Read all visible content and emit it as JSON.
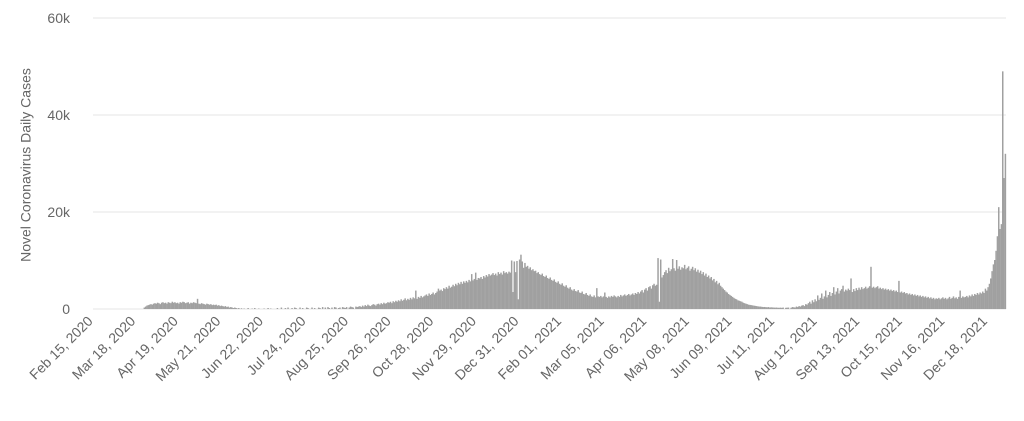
{
  "chart_data": {
    "type": "bar",
    "y_label": "Novel Coronavirus Daily Cases",
    "color": "#a0a0a0",
    "grid": true,
    "ylim": [
      0,
      60000
    ],
    "yticks": [
      0,
      {
        "value": 20000,
        "label": "20k"
      },
      {
        "value": 40000,
        "label": "40k"
      },
      {
        "value": 60000,
        "label": "60k"
      }
    ],
    "categories": [
      "Feb 15, 2020",
      null,
      null,
      null,
      null,
      null,
      null,
      null,
      null,
      null,
      null,
      null,
      null,
      null,
      null,
      null,
      null,
      null,
      null,
      null,
      null,
      null,
      null,
      null,
      null,
      null,
      null,
      null,
      null,
      null,
      null,
      null,
      "Mar 18, 2020",
      null,
      null,
      null,
      null,
      null,
      null,
      null,
      null,
      null,
      null,
      null,
      null,
      null,
      null,
      null,
      null,
      null,
      null,
      null,
      null,
      null,
      null,
      null,
      null,
      null,
      null,
      null,
      null,
      null,
      null,
      null,
      "Apr 19, 2020",
      null,
      null,
      null,
      null,
      null,
      null,
      null,
      null,
      null,
      null,
      null,
      null,
      null,
      null,
      null,
      null,
      null,
      null,
      null,
      null,
      null,
      null,
      null,
      null,
      null,
      null,
      null,
      null,
      null,
      null,
      null,
      "May 21, 2020",
      null,
      null,
      null,
      null,
      null,
      null,
      null,
      null,
      null,
      null,
      null,
      null,
      null,
      null,
      null,
      null,
      null,
      null,
      null,
      null,
      null,
      null,
      null,
      null,
      null,
      null,
      null,
      null,
      null,
      null,
      null,
      "Jun 22, 2020",
      null,
      null,
      null,
      null,
      null,
      null,
      null,
      null,
      null,
      null,
      null,
      null,
      null,
      null,
      null,
      null,
      null,
      null,
      null,
      null,
      null,
      null,
      null,
      null,
      null,
      null,
      null,
      null,
      null,
      null,
      null,
      "Jul 24, 2020",
      null,
      null,
      null,
      null,
      null,
      null,
      null,
      null,
      null,
      null,
      null,
      null,
      null,
      null,
      null,
      null,
      null,
      null,
      null,
      null,
      null,
      null,
      null,
      null,
      null,
      null,
      null,
      null,
      null,
      null,
      null,
      "Aug 25, 2020",
      null,
      null,
      null,
      null,
      null,
      null,
      null,
      null,
      null,
      null,
      null,
      null,
      null,
      null,
      null,
      null,
      null,
      null,
      null,
      null,
      null,
      null,
      null,
      null,
      null,
      null,
      null,
      null,
      null,
      null,
      null,
      "Sep 26, 2020",
      null,
      null,
      null,
      null,
      null,
      null,
      null,
      null,
      null,
      null,
      null,
      null,
      null,
      null,
      null,
      null,
      null,
      null,
      null,
      null,
      null,
      null,
      null,
      null,
      null,
      null,
      null,
      null,
      null,
      null,
      null,
      "Oct 28, 2020",
      null,
      null,
      null,
      null,
      null,
      null,
      null,
      null,
      null,
      null,
      null,
      null,
      null,
      null,
      null,
      null,
      null,
      null,
      null,
      null,
      null,
      null,
      null,
      null,
      null,
      null,
      null,
      null,
      null,
      null,
      null,
      "Nov 29, 2020",
      null,
      null,
      null,
      null,
      null,
      null,
      null,
      null,
      null,
      null,
      null,
      null,
      null,
      null,
      null,
      null,
      null,
      null,
      null,
      null,
      null,
      null,
      null,
      null,
      null,
      null,
      null,
      null,
      null,
      null,
      null,
      "Dec 31, 2020",
      null,
      null,
      null,
      null,
      null,
      null,
      null,
      null,
      null,
      null,
      null,
      null,
      null,
      null,
      null,
      null,
      null,
      null,
      null,
      null,
      null,
      null,
      null,
      null,
      null,
      null,
      null,
      null,
      null,
      null,
      null,
      "Feb 01, 2021",
      null,
      null,
      null,
      null,
      null,
      null,
      null,
      null,
      null,
      null,
      null,
      null,
      null,
      null,
      null,
      null,
      null,
      null,
      null,
      null,
      null,
      null,
      null,
      null,
      null,
      null,
      null,
      null,
      null,
      null,
      null,
      "Mar 05, 2021",
      null,
      null,
      null,
      null,
      null,
      null,
      null,
      null,
      null,
      null,
      null,
      null,
      null,
      null,
      null,
      null,
      null,
      null,
      null,
      null,
      null,
      null,
      null,
      null,
      null,
      null,
      null,
      null,
      null,
      null,
      null,
      "Apr 06, 2021",
      null,
      null,
      null,
      null,
      null,
      null,
      null,
      null,
      null,
      null,
      null,
      null,
      null,
      null,
      null,
      null,
      null,
      null,
      null,
      null,
      null,
      null,
      null,
      null,
      null,
      null,
      null,
      null,
      null,
      null,
      null,
      "May 08, 2021",
      null,
      null,
      null,
      null,
      null,
      null,
      null,
      null,
      null,
      null,
      null,
      null,
      null,
      null,
      null,
      null,
      null,
      null,
      null,
      null,
      null,
      null,
      null,
      null,
      null,
      null,
      null,
      null,
      null,
      null,
      null,
      "Jun 09, 2021",
      null,
      null,
      null,
      null,
      null,
      null,
      null,
      null,
      null,
      null,
      null,
      null,
      null,
      null,
      null,
      null,
      null,
      null,
      null,
      null,
      null,
      null,
      null,
      null,
      null,
      null,
      null,
      null,
      null,
      null,
      null,
      "Jul 11, 2021",
      null,
      null,
      null,
      null,
      null,
      null,
      null,
      null,
      null,
      null,
      null,
      null,
      null,
      null,
      null,
      null,
      null,
      null,
      null,
      null,
      null,
      null,
      null,
      null,
      null,
      null,
      null,
      null,
      null,
      null,
      null,
      "Aug 12, 2021",
      null,
      null,
      null,
      null,
      null,
      null,
      null,
      null,
      null,
      null,
      null,
      null,
      null,
      null,
      null,
      null,
      null,
      null,
      null,
      null,
      null,
      null,
      null,
      null,
      null,
      null,
      null,
      null,
      null,
      null,
      null,
      "Sep 13, 2021",
      null,
      null,
      null,
      null,
      null,
      null,
      null,
      null,
      null,
      null,
      null,
      null,
      null,
      null,
      null,
      null,
      null,
      null,
      null,
      null,
      null,
      null,
      null,
      null,
      null,
      null,
      null,
      null,
      null,
      null,
      null,
      "Oct 15, 2021",
      null,
      null,
      null,
      null,
      null,
      null,
      null,
      null,
      null,
      null,
      null,
      null,
      null,
      null,
      null,
      null,
      null,
      null,
      null,
      null,
      null,
      null,
      null,
      null,
      null,
      null,
      null,
      null,
      null,
      null,
      null,
      "Nov 16, 2021",
      null,
      null,
      null,
      null,
      null,
      null,
      null,
      null,
      null,
      null,
      null,
      null,
      null,
      null,
      null,
      null,
      null,
      null,
      null,
      null,
      null,
      null,
      null,
      null,
      null,
      null,
      null,
      null,
      null,
      null,
      null,
      "Dec 18, 2021",
      null,
      null,
      null,
      null,
      null,
      null,
      null,
      null,
      null,
      null,
      null,
      null,
      null
    ],
    "values": [
      0,
      0,
      0,
      0,
      0,
      0,
      0,
      0,
      0,
      0,
      0,
      0,
      0,
      0,
      0,
      0,
      0,
      0,
      0,
      0,
      0,
      0,
      0,
      0,
      0,
      0,
      0,
      0,
      0,
      0,
      0,
      0,
      0,
      0,
      0,
      0,
      0,
      0,
      300,
      500,
      700,
      800,
      900,
      1000,
      900,
      1100,
      1200,
      1100,
      1300,
      1200,
      1000,
      1300,
      1400,
      1200,
      1300,
      1100,
      1400,
      1300,
      1200,
      1500,
      1300,
      1400,
      1200,
      1300,
      1100,
      1400,
      1300,
      1500,
      1400,
      1200,
      1300,
      1400,
      1100,
      1300,
      1200,
      1400,
      1300,
      1200,
      2100,
      1100,
      1000,
      1200,
      1100,
      1000,
      900,
      1100,
      1000,
      900,
      1000,
      800,
      900,
      800,
      900,
      700,
      800,
      600,
      700,
      600,
      500,
      600,
      400,
      500,
      300,
      400,
      300,
      200,
      300,
      200,
      100,
      200,
      0,
      150,
      0,
      100,
      0,
      0,
      200,
      0,
      0,
      100,
      0,
      200,
      0,
      0,
      100,
      0,
      0,
      0,
      100,
      0,
      0,
      200,
      0,
      100,
      0,
      0,
      0,
      0,
      200,
      0,
      0,
      300,
      0,
      0,
      200,
      0,
      300,
      0,
      0,
      200,
      0,
      300,
      200,
      0,
      0,
      300,
      0,
      200,
      0,
      0,
      300,
      200,
      0,
      0,
      300,
      0,
      200,
      0,
      0,
      300,
      200,
      0,
      400,
      0,
      300,
      0,
      400,
      200,
      0,
      300,
      0,
      400,
      300,
      0,
      200,
      300,
      0,
      400,
      300,
      200,
      400,
      0,
      300,
      500,
      400,
      300,
      0,
      500,
      400,
      500,
      600,
      400,
      700,
      500,
      800,
      600,
      900,
      700,
      600,
      800,
      1000,
      900,
      700,
      1000,
      1100,
      900,
      1200,
      1000,
      1300,
      1100,
      1200,
      1400,
      1300,
      1500,
      1200,
      1600,
      1400,
      1700,
      1500,
      1800,
      1600,
      2000,
      1700,
      1900,
      2200,
      1800,
      2100,
      1900,
      2300,
      2000,
      2400,
      2200,
      3800,
      2100,
      2500,
      2300,
      2700,
      2400,
      2600,
      2800,
      3000,
      2700,
      3200,
      2900,
      3100,
      3400,
      3000,
      3300,
      3600,
      4200,
      3800,
      4000,
      3700,
      4300,
      4100,
      4500,
      4200,
      4800,
      4400,
      4600,
      5000,
      4700,
      5200,
      4900,
      5400,
      5100,
      5600,
      5200,
      5700,
      5400,
      5800,
      5500,
      6000,
      5700,
      7200,
      5900,
      6200,
      7500,
      6000,
      6400,
      6300,
      6600,
      6200,
      6800,
      6500,
      7000,
      6700,
      7200,
      6900,
      7100,
      7400,
      7000,
      7300,
      6900,
      7600,
      7200,
      7500,
      7100,
      7800,
      7400,
      7600,
      7300,
      7700,
      7500,
      10000,
      3500,
      9800,
      7600,
      9900,
      2000,
      10200,
      11200,
      9800,
      8500,
      9500,
      8700,
      8900,
      8300,
      8600,
      8000,
      8200,
      7800,
      7900,
      7400,
      7600,
      7200,
      7000,
      7300,
      6800,
      6600,
      6900,
      6400,
      6200,
      6500,
      6000,
      5800,
      6100,
      5600,
      5400,
      5700,
      5200,
      5000,
      5300,
      4800,
      4600,
      4900,
      4400,
      4200,
      4500,
      4000,
      3800,
      4100,
      3700,
      3600,
      3900,
      3400,
      3300,
      3600,
      3100,
      3000,
      3300,
      2900,
      2700,
      3000,
      2600,
      2500,
      2800,
      2400,
      4300,
      2600,
      2500,
      2700,
      2400,
      2600,
      3400,
      2500,
      2300,
      2600,
      2400,
      2700,
      2500,
      2800,
      2600,
      2400,
      2700,
      2500,
      2900,
      2600,
      2800,
      3000,
      2700,
      2900,
      3100,
      2800,
      3000,
      3200,
      2900,
      3300,
      3100,
      3500,
      3200,
      3600,
      3900,
      3400,
      4000,
      4300,
      3800,
      4500,
      4700,
      4200,
      4900,
      5200,
      4800,
      5000,
      10500,
      1500,
      10200,
      6500,
      7000,
      7600,
      8000,
      7400,
      8500,
      7800,
      8200,
      10300,
      8400,
      7900,
      10100,
      8300,
      8800,
      8100,
      8600,
      8400,
      9100,
      8200,
      8500,
      8800,
      7900,
      8300,
      8700,
      8000,
      8400,
      7700,
      8100,
      7500,
      7900,
      7200,
      7600,
      6900,
      7300,
      6600,
      6900,
      6300,
      6600,
      5900,
      6200,
      5500,
      5800,
      5100,
      5400,
      4800,
      4500,
      4200,
      3900,
      3600,
      3400,
      3100,
      2900,
      2700,
      2500,
      2300,
      2100,
      2000,
      1800,
      1700,
      1600,
      1500,
      1300,
      1200,
      1100,
      1000,
      900,
      850,
      800,
      750,
      700,
      650,
      600,
      550,
      500,
      500,
      450,
      400,
      420,
      380,
      350,
      400,
      300,
      350,
      320,
      300,
      280,
      300,
      260,
      250,
      280,
      240,
      300,
      0,
      250,
      280,
      300,
      0,
      260,
      400,
      350,
      300,
      500,
      400,
      600,
      500,
      700,
      800,
      600,
      1000,
      900,
      1200,
      1500,
      1100,
      1800,
      1400,
      2000,
      1600,
      2800,
      1900,
      2300,
      3200,
      2100,
      2600,
      3800,
      2400,
      2900,
      3500,
      2700,
      3300,
      4500,
      3000,
      3600,
      4300,
      3200,
      3800,
      4100,
      4800,
      3600,
      4000,
      3800,
      4200,
      3900,
      6300,
      3500,
      4100,
      3700,
      4300,
      3900,
      4400,
      4000,
      4500,
      4100,
      4300,
      4600,
      4200,
      4400,
      4700,
      8700,
      4400,
      4600,
      4300,
      4500,
      4700,
      4200,
      4400,
      4100,
      4300,
      4000,
      4200,
      3900,
      4100,
      3800,
      4000,
      3700,
      3900,
      3600,
      3800,
      3500,
      5800,
      3400,
      3600,
      3300,
      3500,
      3200,
      3300,
      3000,
      3200,
      2900,
      3100,
      2800,
      3000,
      2700,
      2900,
      2600,
      2800,
      2500,
      2700,
      2400,
      2600,
      2300,
      2500,
      2200,
      2400,
      2100,
      2300,
      2000,
      2200,
      2100,
      2300,
      2000,
      2200,
      2400,
      2100,
      2300,
      2000,
      2200,
      2500,
      2100,
      2300,
      2600,
      2200,
      2400,
      2100,
      2500,
      3800,
      2300,
      2600,
      2400,
      2500,
      2700,
      2400,
      2800,
      2600,
      3000,
      2700,
      3100,
      2900,
      3300,
      3000,
      3400,
      3200,
      3600,
      3300,
      4200,
      3800,
      4500,
      5200,
      6300,
      7800,
      9200,
      10100,
      12000,
      15000,
      21000,
      16500,
      17500,
      49000,
      27000,
      32000
    ]
  }
}
